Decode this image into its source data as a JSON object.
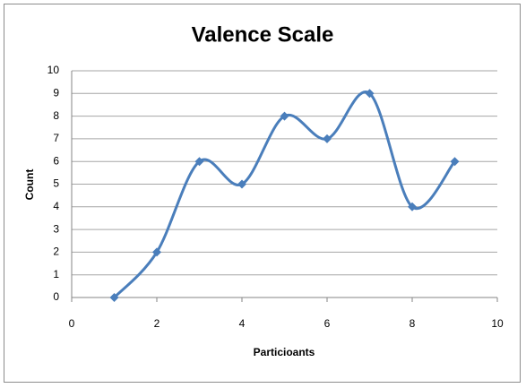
{
  "chart_data": {
    "type": "line",
    "title": "Valence Scale",
    "x_label": "Particioants",
    "y_label": "Count",
    "x": [
      1,
      2,
      3,
      4,
      5,
      6,
      7,
      8,
      9
    ],
    "series": [
      {
        "color": "#4a7ebb",
        "values": [
          0,
          2,
          6,
          5,
          8,
          7,
          9,
          4,
          6
        ]
      }
    ],
    "xlim": [
      0,
      10
    ],
    "xticks": [
      0,
      2,
      4,
      6,
      8,
      10
    ],
    "ylim": [
      0,
      10
    ],
    "yticks": [
      0,
      1,
      2,
      3,
      4,
      5,
      6,
      7,
      8,
      9,
      10
    ],
    "grid": true,
    "smooth": true,
    "marker": "diamond"
  }
}
